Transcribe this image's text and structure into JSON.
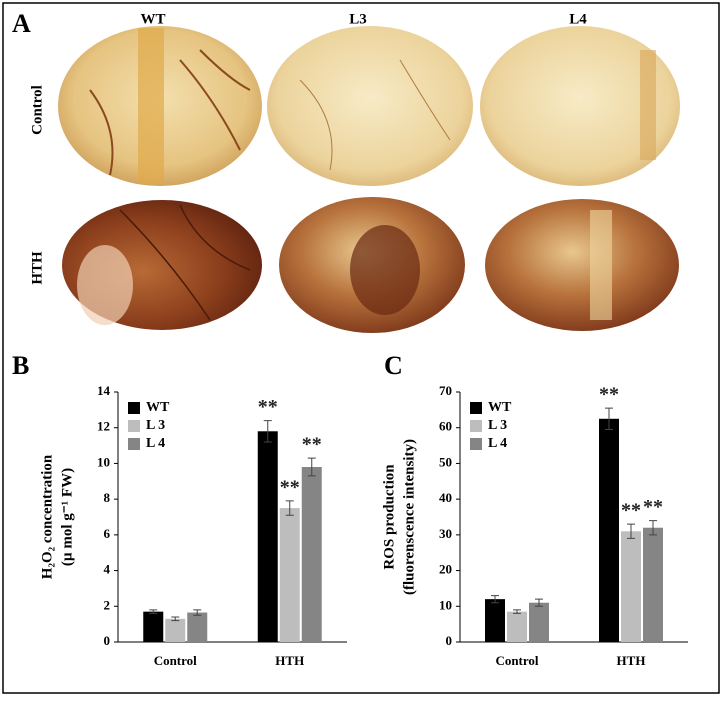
{
  "panel_a": {
    "panel_label": "A",
    "columns": [
      "WT",
      "L3",
      "L4"
    ],
    "rows": [
      "Control",
      "HTH"
    ]
  },
  "chart_data": [
    {
      "type": "bar",
      "panel_label": "B",
      "ylabel": [
        "H₂O₂ concentration",
        "(µ mol g⁻¹ FW)"
      ],
      "categories": [
        "Control",
        "HTH"
      ],
      "ylim": [
        0,
        14
      ],
      "yticks": [
        0,
        2,
        4,
        6,
        8,
        10,
        12,
        14
      ],
      "grid": false,
      "legend": "upper-left",
      "series": [
        {
          "name": "WT",
          "color": "#000000",
          "values": [
            1.7,
            11.8
          ],
          "errors": [
            0.1,
            0.6
          ],
          "annotations": [
            null,
            "**"
          ]
        },
        {
          "name": "L 3",
          "color": "#bdbdbd",
          "values": [
            1.3,
            7.5
          ],
          "errors": [
            0.1,
            0.4
          ],
          "annotations": [
            null,
            "**"
          ]
        },
        {
          "name": "L 4",
          "color": "#858585",
          "values": [
            1.65,
            9.8
          ],
          "errors": [
            0.15,
            0.5
          ],
          "annotations": [
            null,
            "**"
          ]
        }
      ]
    },
    {
      "type": "bar",
      "panel_label": "C",
      "ylabel": [
        "ROS production",
        "(fluorenscence intensity)"
      ],
      "categories": [
        "Control",
        "HTH"
      ],
      "ylim": [
        0,
        70
      ],
      "yticks": [
        0,
        10,
        20,
        30,
        40,
        50,
        60,
        70
      ],
      "grid": false,
      "legend": "upper-left",
      "series": [
        {
          "name": "WT",
          "color": "#000000",
          "values": [
            12,
            62.5
          ],
          "errors": [
            1,
            3
          ],
          "annotations": [
            null,
            "**"
          ]
        },
        {
          "name": "L 3",
          "color": "#bdbdbd",
          "values": [
            8.5,
            31
          ],
          "errors": [
            0.5,
            2
          ],
          "annotations": [
            null,
            "**"
          ]
        },
        {
          "name": "L 4",
          "color": "#858585",
          "values": [
            11,
            32
          ],
          "errors": [
            1,
            2
          ],
          "annotations": [
            null,
            "**"
          ]
        }
      ]
    }
  ]
}
